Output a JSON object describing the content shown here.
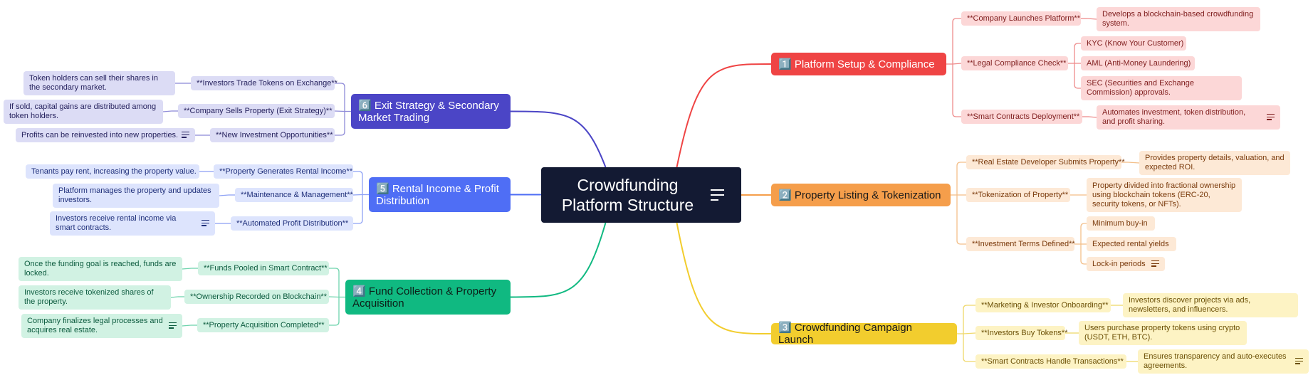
{
  "colors": {
    "root": "#131a33",
    "platform_setup": "#ef4444",
    "property_listing": "#f59e4b",
    "campaign_launch": "#f2cd2e",
    "fund_collection": "#10b981",
    "rental_income": "#4f6ef5",
    "exit_strategy": "#4b45c6"
  },
  "icons": {
    "note": "note-lines-icon"
  },
  "root": {
    "title_line1": "Crowdfunding",
    "title_line2": "Platform Structure"
  },
  "branches": {
    "platform_setup": {
      "title": "1️⃣ Platform Setup & Compliance",
      "items": {
        "launch": {
          "label": "**Company Launches Platform**",
          "details": [
            "Develops a blockchain-based crowdfunding system."
          ]
        },
        "legal": {
          "label": "**Legal Compliance Check**",
          "details": [
            "KYC (Know Your Customer)",
            "AML (Anti-Money Laundering)",
            "SEC (Securities and Exchange Commission) approvals."
          ]
        },
        "contracts": {
          "label": "**Smart Contracts Deployment**",
          "details": [
            "Automates investment, token distribution, and profit sharing."
          ]
        }
      }
    },
    "property_listing": {
      "title": "2️⃣ Property Listing & Tokenization",
      "items": {
        "developer": {
          "label": "**Real Estate Developer Submits Property**",
          "details": [
            "Provides property details, valuation, and expected ROI."
          ]
        },
        "tokenization": {
          "label": "**Tokenization of Property**",
          "details": [
            "Property divided into fractional ownership using blockchain tokens (ERC-20, security tokens, or NFTs)."
          ]
        },
        "terms": {
          "label": "**Investment Terms Defined**",
          "details": [
            "Minimum buy-in",
            "Expected rental yields",
            "Lock-in periods"
          ]
        }
      }
    },
    "campaign_launch": {
      "title": "3️⃣ Crowdfunding Campaign Launch",
      "items": {
        "marketing": {
          "label": "**Marketing & Investor Onboarding**",
          "details": [
            "Investors discover projects via ads, newsletters, and influencers."
          ]
        },
        "buy": {
          "label": "**Investors Buy Tokens**",
          "details": [
            "Users purchase property tokens using crypto (USDT, ETH, BTC)."
          ]
        },
        "transactions": {
          "label": "**Smart Contracts Handle Transactions**",
          "details": [
            "Ensures transparency and auto-executes agreements."
          ]
        }
      }
    },
    "fund_collection": {
      "title": "4️⃣ Fund Collection & Property Acquisition",
      "items": {
        "pooled": {
          "label": "**Funds Pooled in Smart Contract**",
          "details": [
            "Once the funding goal is reached, funds are locked."
          ]
        },
        "ownership": {
          "label": "**Ownership Recorded on Blockchain**",
          "details": [
            "Investors receive tokenized shares of the property."
          ]
        },
        "acquisition": {
          "label": "**Property Acquisition Completed**",
          "details": [
            "Company finalizes legal processes and acquires real estate."
          ]
        }
      }
    },
    "rental_income": {
      "title": "5️⃣ Rental Income & Profit Distribution",
      "items": {
        "rent": {
          "label": "**Property Generates Rental Income**",
          "details": [
            "Tenants pay rent, increasing the property value."
          ]
        },
        "maintenance": {
          "label": "**Maintenance & Management**",
          "details": [
            "Platform manages the property and updates investors."
          ]
        },
        "distribution": {
          "label": "**Automated Profit Distribution**",
          "details": [
            "Investors receive rental income via smart contracts."
          ]
        }
      }
    },
    "exit_strategy": {
      "title": "6️⃣ Exit Strategy & Secondary Market Trading",
      "items": {
        "trade": {
          "label": "**Investors Trade Tokens on Exchange**",
          "details": [
            "Token holders can sell their shares in the secondary market."
          ]
        },
        "sell": {
          "label": "**Company Sells Property (Exit Strategy)**",
          "details": [
            "If sold, capital gains are distributed among token holders."
          ]
        },
        "reinvest": {
          "label": "**New Investment Opportunities**",
          "details": [
            "Profits can be reinvested into new properties."
          ]
        }
      }
    }
  }
}
